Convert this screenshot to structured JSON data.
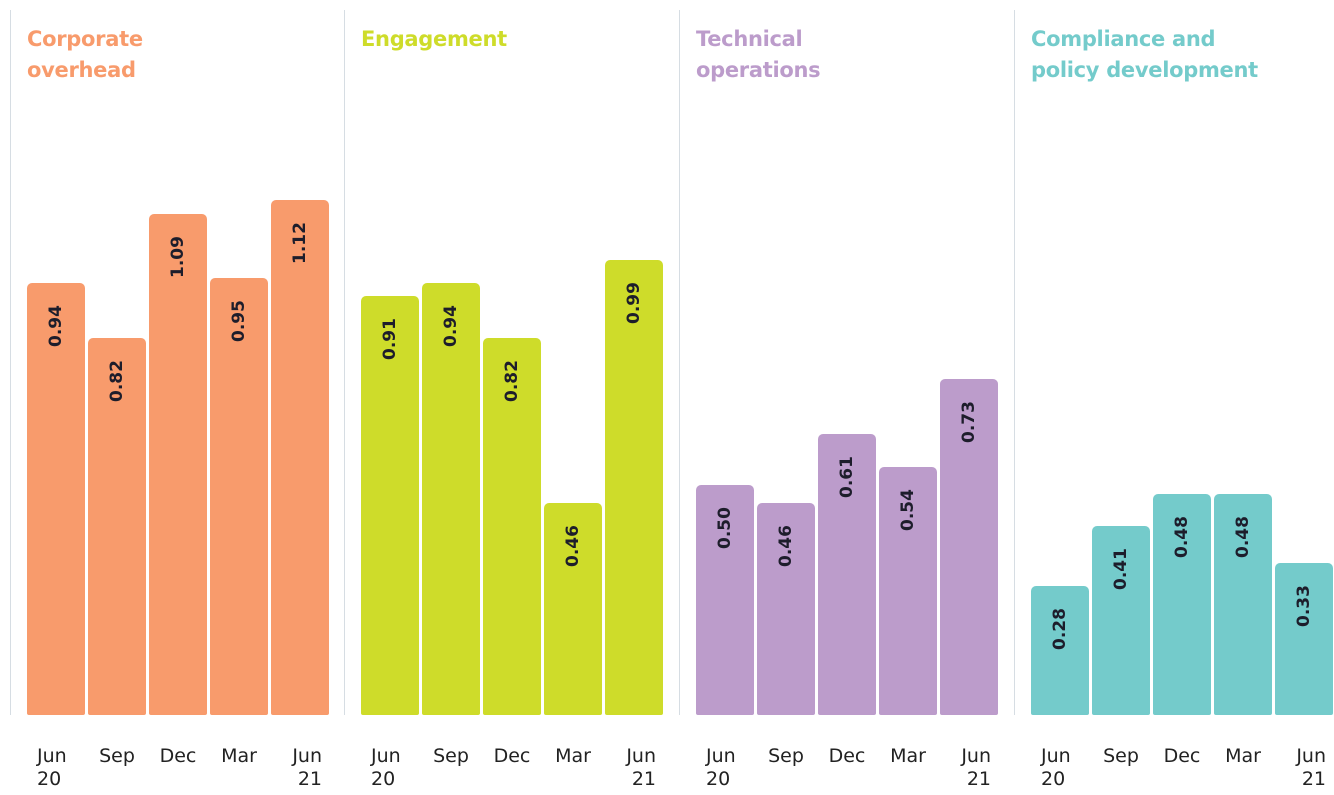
{
  "chart_data": [
    {
      "type": "bar",
      "title": "Corporate overhead",
      "color": "#f89b6c",
      "categories": [
        "Jun\n20",
        "Sep",
        "Dec",
        "Mar",
        "Jun\n21"
      ],
      "values": [
        0.94,
        0.82,
        1.09,
        0.95,
        1.12
      ],
      "value_labels": [
        "0.94",
        "0.82",
        "1.09",
        "0.95",
        "1.12"
      ],
      "ylim": [
        0,
        1.2
      ]
    },
    {
      "type": "bar",
      "title": "Engagement",
      "color": "#cedc2a",
      "categories": [
        "Jun\n20",
        "Sep",
        "Dec",
        "Mar",
        "Jun\n21"
      ],
      "values": [
        0.91,
        0.94,
        0.82,
        0.46,
        0.99
      ],
      "value_labels": [
        "0.91",
        "0.94",
        "0.82",
        "0.46",
        "0.99"
      ],
      "ylim": [
        0,
        1.2
      ]
    },
    {
      "type": "bar",
      "title": "Technical operations",
      "color": "#bc9ccb",
      "categories": [
        "Jun\n20",
        "Sep",
        "Dec",
        "Mar",
        "Jun\n21"
      ],
      "values": [
        0.5,
        0.46,
        0.61,
        0.54,
        0.73
      ],
      "value_labels": [
        "0.50",
        "0.46",
        "0.61",
        "0.54",
        "0.73"
      ],
      "ylim": [
        0,
        1.2
      ]
    },
    {
      "type": "bar",
      "title": "Compliance and policy development",
      "color": "#74cbcb",
      "categories": [
        "Jun\n20",
        "Sep",
        "Dec",
        "Mar",
        "Jun\n21"
      ],
      "values": [
        0.28,
        0.41,
        0.48,
        0.48,
        0.33
      ],
      "value_labels": [
        "0.28",
        "0.41",
        "0.48",
        "0.48",
        "0.33"
      ],
      "ylim": [
        0,
        1.2
      ]
    }
  ]
}
